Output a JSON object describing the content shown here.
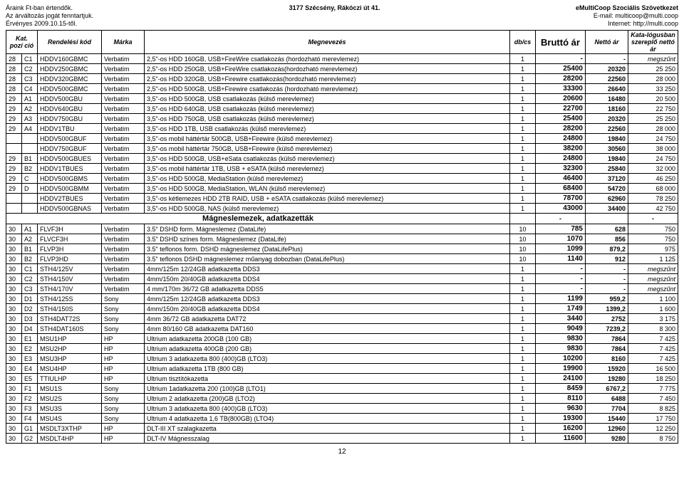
{
  "header": {
    "left1": "Áraink Ft-ban értendők.",
    "left2": "Az árváltozás jogát fenntartjuk.",
    "left3": "Érvényes 2009.10.15-től.",
    "center": "3177 Szécsény, Rákóczi út 41.",
    "right1": "eMultiCoop Szociális Szövetkezet",
    "right2": "E-mail: multicoop@multi.coop",
    "right3": "Internet: http://multi.coop"
  },
  "cols": {
    "kat": "Kat.",
    "poz": "pozí ció",
    "kod": "Rendelési kód",
    "marka": "Márka",
    "megn": "Megnevezés",
    "db": "db/cs",
    "brutto": "Bruttó ár",
    "netto": "Nettó ár",
    "katnet": "Kata-lógusban szereplő nettó ár"
  },
  "rows": [
    {
      "t": "r",
      "kat": "28",
      "poz": "C1",
      "kod": "HDDV160GBMC",
      "mr": "Verbatim",
      "m": "2,5\"-os HDD 160GB, USB+FireWire csatlakozás (hordozható merevlemez)",
      "db": "1",
      "br": "-",
      "ne": "-",
      "kn": "megszűnt"
    },
    {
      "t": "r",
      "kat": "28",
      "poz": "C2",
      "kod": "HDDV250GBMC",
      "mr": "Verbatim",
      "m": "2,5\"-os HDD 250GB, USB+FireWire csatlakozás(hordozható merevlemez)",
      "db": "1",
      "br": "25400",
      "ne": "20320",
      "kn": "25 250"
    },
    {
      "t": "r",
      "kat": "28",
      "poz": "C3",
      "kod": "HDDV320GBMC",
      "mr": "Verbatim",
      "m": "2,5\"-os HDD 320GB, USB+Firewire csatlakozás(hordozható merevlemez)",
      "db": "1",
      "br": "28200",
      "ne": "22560",
      "kn": "28 000"
    },
    {
      "t": "r",
      "kat": "28",
      "poz": "C4",
      "kod": "HDDV500GBMC",
      "mr": "Verbatim",
      "m": "2,5\"-os HDD 500GB, USB+Firewire csatlakozás (hordozható merevlemez)",
      "db": "1",
      "br": "33300",
      "ne": "26640",
      "kn": "33 250"
    },
    {
      "t": "r",
      "kat": "29",
      "poz": "A1",
      "kod": "HDDV500GBU",
      "mr": "Verbatim",
      "m": "3,5\"-os HDD 500GB, USB csatlakozás (külső merevlemez)",
      "db": "1",
      "br": "20600",
      "ne": "16480",
      "kn": "20 500"
    },
    {
      "t": "r",
      "kat": "29",
      "poz": "A2",
      "kod": "HDDV640GBU",
      "mr": "Verbatim",
      "m": "3,5\"-os HDD 640GB, USB csatlakozás (külső merevlemez)",
      "db": "1",
      "br": "22700",
      "ne": "18160",
      "kn": "22 750"
    },
    {
      "t": "r",
      "kat": "29",
      "poz": "A3",
      "kod": "HDDV750GBU",
      "mr": "Verbatim",
      "m": "3,5\"-os HDD 750GB, USB csatlakozás (külső merevlemez)",
      "db": "1",
      "br": "25400",
      "ne": "20320",
      "kn": "25 250"
    },
    {
      "t": "r",
      "kat": "29",
      "poz": "A4",
      "kod": "HDDV1TBU",
      "mr": "Verbatim",
      "m": "3,5\"-os HDD 1TB, USB csatlakozás (külső merevlemez)",
      "db": "1",
      "br": "28200",
      "ne": "22560",
      "kn": "28 000"
    },
    {
      "t": "r",
      "kat": "",
      "poz": "",
      "kod": "HDDV500GBUF",
      "mr": "Verbatim",
      "m": "3,5\"-os mobil háttértár 500GB, USB+Firewire (külső merevlemez)",
      "db": "1",
      "br": "24800",
      "ne": "19840",
      "kn": "24 750"
    },
    {
      "t": "r",
      "kat": "",
      "poz": "",
      "kod": "HDDV750GBUF",
      "mr": "Verbatim",
      "m": "3,5\"-os mobil háttértár 750GB, USB+Firewire (külső merevlemez)",
      "db": "1",
      "br": "38200",
      "ne": "30560",
      "kn": "38 000"
    },
    {
      "t": "r",
      "kat": "29",
      "poz": "B1",
      "kod": "HDDV500GBUES",
      "mr": "Verbatim",
      "m": "3,5\"-os HDD 500GB, USB+eSata csatlakozás (külső merevlemez)",
      "db": "1",
      "br": "24800",
      "ne": "19840",
      "kn": "24 750"
    },
    {
      "t": "r",
      "kat": "29",
      "poz": "B2",
      "kod": "HDDV1TBUES",
      "mr": "Verbatim",
      "m": "3,5\"-os mobil háttértár 1TB, USB + eSATA (külső merevlemez)",
      "db": "1",
      "br": "32300",
      "ne": "25840",
      "kn": "32 000"
    },
    {
      "t": "r",
      "kat": "29",
      "poz": "C",
      "kod": "HDDV500GBMS",
      "mr": "Verbatim",
      "m": "3,5\"-os HDD 500GB, MediaStation (külső merevlemez)",
      "db": "1",
      "br": "46400",
      "ne": "37120",
      "kn": "46 250"
    },
    {
      "t": "r",
      "kat": "29",
      "poz": "D",
      "kod": "HDDV500GBMM",
      "mr": "Verbatim",
      "m": "3,5\"-os HDD 500GB, MediaStation, WLAN (külső merevlemez)",
      "db": "1",
      "br": "68400",
      "ne": "54720",
      "kn": "68 000"
    },
    {
      "t": "r",
      "kat": "",
      "poz": "",
      "kod": "HDDV2TBUES",
      "mr": "Verbatim",
      "m": "3,5\"-os kétlemezes HDD 2TB RAID, USB + eSATA csatlakozás (külső merevlemez)",
      "db": "1",
      "br": "78700",
      "ne": "62960",
      "kn": "78 250"
    },
    {
      "t": "r",
      "kat": "",
      "poz": "",
      "kod": "HDDV500GBNAS",
      "mr": "Verbatim",
      "m": "3,5\"-os HDD 500GB, NAS (külső merevlemez)",
      "db": "1",
      "br": "43000",
      "ne": "34400",
      "kn": "42 750"
    },
    {
      "t": "s",
      "m": "Mágneslemezek, adatkazetták",
      "br": "-",
      "ne": "",
      "kn": "-"
    },
    {
      "t": "r",
      "kat": "30",
      "poz": "A1",
      "kod": "FLVF3H",
      "mr": "Verbatim",
      "m": "3.5\" DSHD form. Mágneslemez (DataLife)",
      "db": "10",
      "br": "785",
      "ne": "628",
      "kn": "750"
    },
    {
      "t": "r",
      "kat": "30",
      "poz": "A2",
      "kod": "FLVCF3H",
      "mr": "Verbatim",
      "m": "3.5\" DSHD színes form. Mágneslemez (DataLife)",
      "db": "10",
      "br": "1070",
      "ne": "856",
      "kn": "750"
    },
    {
      "t": "r",
      "kat": "30",
      "poz": "B1",
      "kod": "FLVP3H",
      "mr": "Verbatim",
      "m": "3.5\" teflonos form. DSHD mágneslemez (DataLifePlus)",
      "db": "10",
      "br": "1099",
      "ne": "879,2",
      "kn": "975"
    },
    {
      "t": "r",
      "kat": "30",
      "poz": "B2",
      "kod": "FLVP3HD",
      "mr": "Verbatim",
      "m": "3.5\" teflonos DSHD mágneslemez műanyag dobozban (DataLifePlus)",
      "db": "10",
      "br": "1140",
      "ne": "912",
      "kn": "1 125"
    },
    {
      "t": "r",
      "kat": "30",
      "poz": "C1",
      "kod": "STH4/125V",
      "mr": "Verbatim",
      "m": "4mm/125m 12/24GB adatkazetta DDS3",
      "db": "1",
      "br": "-",
      "ne": "-",
      "kn": "megszűnt"
    },
    {
      "t": "r",
      "kat": "30",
      "poz": "C2",
      "kod": "STH4/150V",
      "mr": "Verbatim",
      "m": "4mm/150m 20/40GB adatkazetta DDS4",
      "db": "1",
      "br": "-",
      "ne": "-",
      "kn": "megszűnt"
    },
    {
      "t": "r",
      "kat": "30",
      "poz": "C3",
      "kod": "STH4/170V",
      "mr": "Verbatim",
      "m": "4 mm/170m 36/72 GB adatkazetta DDS5",
      "db": "1",
      "br": "-",
      "ne": "-",
      "kn": "megszűnt"
    },
    {
      "t": "r",
      "kat": "30",
      "poz": "D1",
      "kod": "STH4/125S",
      "mr": "Sony",
      "m": "4mm/125m 12/24GB adatkazetta DDS3",
      "db": "1",
      "br": "1199",
      "ne": "959,2",
      "kn": "1 100"
    },
    {
      "t": "r",
      "kat": "30",
      "poz": "D2",
      "kod": "STH4/150S",
      "mr": "Sony",
      "m": "4mm/150m 20/40GB adatkazetta DDS4",
      "db": "1",
      "br": "1749",
      "ne": "1399,2",
      "kn": "1 600"
    },
    {
      "t": "r",
      "kat": "30",
      "poz": "D3",
      "kod": "STH4DAT72S",
      "mr": "Sony",
      "m": "4mm 36/72 GB adatkazetta DAT72",
      "db": "1",
      "br": "3440",
      "ne": "2752",
      "kn": "3 175"
    },
    {
      "t": "r",
      "kat": "30",
      "poz": "D4",
      "kod": "STH4DAT160S",
      "mr": "Sony",
      "m": "4mm 80/160 GB adatkazetta DAT160",
      "db": "1",
      "br": "9049",
      "ne": "7239,2",
      "kn": "8 300"
    },
    {
      "t": "r",
      "kat": "30",
      "poz": "E1",
      "kod": "MSU1HP",
      "mr": "HP",
      "m": "Ultrium adatkazetta 200GB (100 GB)",
      "db": "1",
      "br": "9830",
      "ne": "7864",
      "kn": "7 425"
    },
    {
      "t": "r",
      "kat": "30",
      "poz": "E2",
      "kod": "MSU2HP",
      "mr": "HP",
      "m": "Ultrium adatkazetta 400GB (200 GB)",
      "db": "1",
      "br": "9830",
      "ne": "7864",
      "kn": "7 425"
    },
    {
      "t": "r",
      "kat": "30",
      "poz": "E3",
      "kod": "MSU3HP",
      "mr": "HP",
      "m": "Ultrium 3 adatkazetta 800 (400)GB (LTO3)",
      "db": "1",
      "br": "10200",
      "ne": "8160",
      "kn": "7 425"
    },
    {
      "t": "r",
      "kat": "30",
      "poz": "E4",
      "kod": "MSU4HP",
      "mr": "HP",
      "m": "Ultrium adatkazetta 1TB (800 GB)",
      "db": "1",
      "br": "19900",
      "ne": "15920",
      "kn": "16 500"
    },
    {
      "t": "r",
      "kat": "30",
      "poz": "E5",
      "kod": "TTIULHP",
      "mr": "HP",
      "m": "Ultrium tisztítókazetta",
      "db": "1",
      "br": "24100",
      "ne": "19280",
      "kn": "18 250"
    },
    {
      "t": "r",
      "kat": "30",
      "poz": "F1",
      "kod": "MSU1S",
      "mr": "Sony",
      "m": "Ultrium 1adatkazetta 200 (100)GB (LTO1)",
      "db": "1",
      "br": "8459",
      "ne": "6767,2",
      "kn": "7 775"
    },
    {
      "t": "r",
      "kat": "30",
      "poz": "F2",
      "kod": "MSU2S",
      "mr": "Sony",
      "m": "Ultrium 2 adatkazetta (200)GB (LTO2)",
      "db": "1",
      "br": "8110",
      "ne": "6488",
      "kn": "7 450"
    },
    {
      "t": "r",
      "kat": "30",
      "poz": "F3",
      "kod": "MSU3S",
      "mr": "Sony",
      "m": "Ultrium 3 adatkazetta 800 (400)GB (LTO3)",
      "db": "1",
      "br": "9630",
      "ne": "7704",
      "kn": "8 825"
    },
    {
      "t": "r",
      "kat": "30",
      "poz": "F4",
      "kod": "MSU4S",
      "mr": "Sony",
      "m": "Ultrium 4 adatkazetta 1,6 TB(800GB) (LTO4)",
      "db": "1",
      "br": "19300",
      "ne": "15440",
      "kn": "17 750"
    },
    {
      "t": "r",
      "kat": "30",
      "poz": "G1",
      "kod": "MSDLT3XTHP",
      "mr": "HP",
      "m": "DLT-III XT szalagkazetta",
      "db": "1",
      "br": "16200",
      "ne": "12960",
      "kn": "12 250"
    },
    {
      "t": "r",
      "kat": "30",
      "poz": "G2",
      "kod": "MSDLT4HP",
      "mr": "HP",
      "m": "DLT-IV Mágnesszalag",
      "db": "1",
      "br": "11600",
      "ne": "9280",
      "kn": "8 750"
    }
  ],
  "pageNumber": "12"
}
